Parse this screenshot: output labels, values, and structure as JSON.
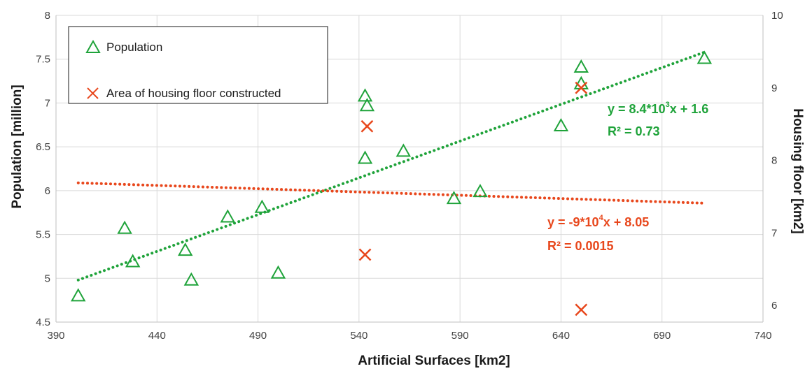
{
  "chart_data": {
    "type": "scatter",
    "xlabel": "Artificial Surfaces [km2]",
    "ylabel": "Population [million]",
    "y2label": "Housing floor [km2]",
    "xlim": [
      390,
      740
    ],
    "ylim": [
      4.5,
      8
    ],
    "y2lim": [
      5.77,
      10
    ],
    "x_ticks": [
      "390",
      "440",
      "490",
      "540",
      "590",
      "640",
      "690",
      "740"
    ],
    "y_ticks": [
      "4.5",
      "5",
      "5.5",
      "6",
      "6.5",
      "7",
      "7.5",
      "8"
    ],
    "y2_ticks": [
      "6",
      "7",
      "8",
      "9",
      "10"
    ],
    "grid": true,
    "legend_position": "top-left",
    "colors": {
      "population": "#1fa33a",
      "housing": "#e8471c"
    },
    "series": [
      {
        "name": "Population",
        "marker": "triangle",
        "axis": "left",
        "points": [
          [
            401,
            4.8
          ],
          [
            424,
            5.57
          ],
          [
            428,
            5.19
          ],
          [
            454,
            5.32
          ],
          [
            457,
            4.98
          ],
          [
            475,
            5.7
          ],
          [
            492,
            5.81
          ],
          [
            500,
            5.06
          ],
          [
            543,
            6.37
          ],
          [
            543,
            7.08
          ],
          [
            544,
            6.97
          ],
          [
            562,
            6.45
          ],
          [
            587,
            5.91
          ],
          [
            600,
            5.99
          ],
          [
            640,
            6.74
          ],
          [
            650,
            7.41
          ],
          [
            650,
            7.22
          ],
          [
            711,
            7.51
          ]
        ]
      },
      {
        "name": "Area of housing floor constructed",
        "marker": "x",
        "axis": "right",
        "points": [
          [
            544,
            8.47
          ],
          [
            543,
            6.7
          ],
          [
            650,
            9.0
          ],
          [
            650,
            5.94
          ]
        ]
      }
    ],
    "trendlines": [
      {
        "series": "Population",
        "axis": "left",
        "x": [
          401,
          711
        ],
        "y": [
          4.98,
          7.58
        ]
      },
      {
        "series": "Area of housing floor constructed",
        "axis": "right",
        "x": [
          401,
          711
        ],
        "y": [
          7.69,
          7.41
        ]
      }
    ],
    "annotations": {
      "pop_eq": {
        "pre": "y = 8.4*10",
        "sup": "3",
        "post": "x + 1.6",
        "r2": "R² = 0.73"
      },
      "house_eq": {
        "pre": "y = -9*10",
        "sup": "4",
        "post": "x  + 8.05",
        "r2": "R² = 0.0015"
      }
    }
  }
}
